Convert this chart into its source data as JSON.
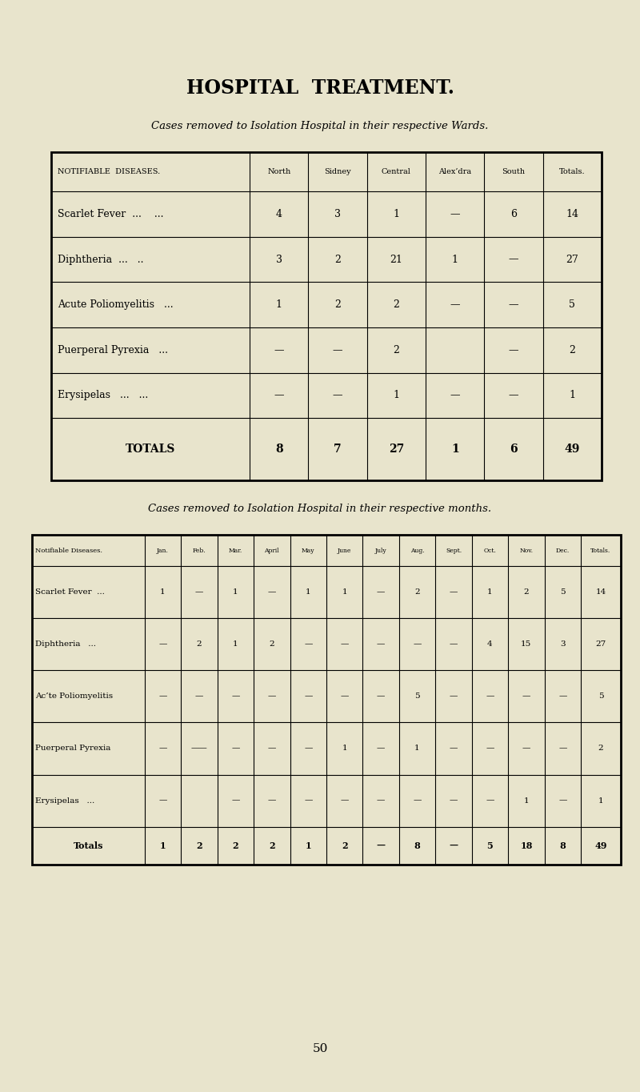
{
  "bg_color": "#e8e4cc",
  "title": "HOSPITAL  TREATMENT.",
  "subtitle1": "Cases removed to Isolation Hospital in their respective Wards.",
  "subtitle2": "Cases removed to Isolation Hospital in their respective months.",
  "page_number": "50",
  "table1": {
    "col_headers": [
      "NOTIFIABLE  DISEASES.",
      "North",
      "Sidney",
      "Central",
      "Alex’dra",
      "South",
      "Totals."
    ],
    "rows": [
      [
        "Scarlet Fever  ...    ...",
        "4",
        "3",
        "1",
        "—",
        "6",
        "14"
      ],
      [
        "Diphtheria  ...   ..",
        "3",
        "2",
        "21",
        "1",
        "—",
        "27"
      ],
      [
        "Acute Poliomyelitis   ...",
        "1",
        "2",
        "2",
        "—",
        "—",
        "5"
      ],
      [
        "Puerperal Pyrexia   ...",
        "—",
        "—",
        "2",
        "",
        "—",
        "2"
      ],
      [
        "Erysipelas   ...   ...",
        "—",
        "—",
        "1",
        "—",
        "—",
        "1"
      ]
    ],
    "totals_row": [
      "TOTALS",
      "8",
      "7",
      "27",
      "1",
      "6",
      "49"
    ]
  },
  "table2": {
    "col_headers": [
      "Notifiable Diseases.",
      "Jan.",
      "Feb.",
      "Mar.",
      "April",
      "May",
      "June",
      "July",
      "Aug.",
      "Sept.",
      "Oct.",
      "Nov.",
      "Dec.",
      "Totals."
    ],
    "rows": [
      [
        "Scarlet Fever  ...",
        "1",
        "—",
        "1",
        "—",
        "1",
        "1",
        "—",
        "2",
        "—",
        "1",
        "2",
        "5",
        "14"
      ],
      [
        "Diphtheria   ...",
        "—",
        "2",
        "1",
        "2",
        "—",
        "—",
        "—",
        "—",
        "—",
        "4",
        "15",
        "3",
        "27"
      ],
      [
        "Ac’te Poliomyelitis",
        "—",
        "—",
        "—",
        "—",
        "—",
        "—",
        "—",
        "5",
        "—",
        "—",
        "—",
        "—",
        "5"
      ],
      [
        "Puerperal Pyrexia",
        "—",
        "——",
        "—",
        "—",
        "—",
        "1",
        "—",
        "1",
        "—",
        "—",
        "—",
        "—",
        "2"
      ],
      [
        "Erysipelas   ...",
        "—",
        "",
        "—",
        "—",
        "—",
        "—",
        "—",
        "—",
        "—",
        "—",
        "1",
        "—",
        "1"
      ]
    ],
    "totals_row": [
      "Totals",
      "1",
      "2",
      "2",
      "2",
      "1",
      "2",
      "—",
      "8",
      "—",
      "5",
      "18",
      "8",
      "49"
    ]
  }
}
